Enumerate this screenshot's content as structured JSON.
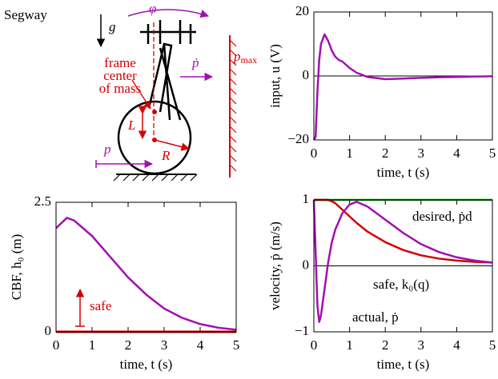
{
  "diagram": {
    "title": "Segway",
    "g": "g",
    "phi": "φ",
    "p_max": {
      "base": "p",
      "sub": "max"
    },
    "p_dot": "ṗ",
    "com_label": [
      "frame",
      "center",
      "of mass"
    ],
    "L": "L",
    "R": "R",
    "p": "p"
  },
  "chart_data": [
    {
      "type": "line",
      "xlabel": "time, t (s)",
      "ylabel": "input, u (V)",
      "x": [
        0,
        0.05,
        0.1,
        0.15,
        0.2,
        0.3,
        0.4,
        0.5,
        0.6,
        0.7,
        0.8,
        1.0,
        1.2,
        1.5,
        2.0,
        2.5,
        3,
        3.5,
        4,
        4.5,
        5
      ],
      "series": [
        {
          "color": "#a010b0",
          "values": [
            -20,
            -19,
            -5,
            5,
            10,
            13,
            11,
            8,
            6,
            5,
            4.5,
            2.5,
            1,
            -0.3,
            -1,
            -0.8,
            -0.6,
            -0.4,
            -0.3,
            -0.2,
            -0.1
          ]
        }
      ],
      "xlim": [
        0,
        5
      ],
      "ylim": [
        -20,
        20
      ],
      "xticks": [
        0,
        1,
        2,
        3,
        4,
        5
      ],
      "yticks": [
        {
          "value": -20,
          "label": "−20"
        },
        0,
        20
      ],
      "zero_line_color": "#000000"
    },
    {
      "type": "line",
      "xlabel": "time, t (s)",
      "ylabel": "CBF, h₀ (m)",
      "x": [
        0,
        0.3,
        0.5,
        1,
        1.5,
        2,
        2.5,
        3,
        3.5,
        4,
        4.5,
        5
      ],
      "series": [
        {
          "color": "#a010b0",
          "values": [
            2.0,
            2.2,
            2.15,
            1.85,
            1.45,
            1.05,
            0.72,
            0.45,
            0.27,
            0.15,
            0.08,
            0.04
          ]
        }
      ],
      "xlim": [
        0,
        5
      ],
      "ylim": [
        0,
        2.5
      ],
      "xticks": [
        0,
        1,
        2,
        3,
        4,
        5
      ],
      "yticks": [
        0,
        2.5
      ],
      "zero_line_color": "#d40000",
      "annotations": [
        {
          "text": "safe"
        }
      ]
    },
    {
      "type": "line",
      "xlabel": "time, t (s)",
      "ylabel": "velocity, ṗ (m/s)",
      "x": [
        0,
        0.05,
        0.1,
        0.15,
        0.2,
        0.3,
        0.4,
        0.5,
        0.6,
        0.8,
        1,
        1.2,
        1.5,
        2,
        2.5,
        3,
        3.5,
        4,
        4.5,
        5
      ],
      "series": [
        {
          "name": "desired, ṗd",
          "color": "#00a000",
          "values": [
            1,
            1,
            1,
            1,
            1,
            1,
            1,
            1,
            1,
            1,
            1,
            1,
            1,
            1,
            1,
            1,
            1,
            1,
            1,
            1
          ]
        },
        {
          "name": "safe, k₀(q)",
          "color": "#d40000",
          "values": [
            1,
            1,
            1,
            1,
            1,
            1,
            1,
            0.98,
            0.95,
            0.85,
            0.75,
            0.65,
            0.52,
            0.36,
            0.24,
            0.16,
            0.11,
            0.08,
            0.06,
            0.05
          ]
        },
        {
          "name": "actual, ṗ",
          "color": "#a010b0",
          "values": [
            1,
            0.2,
            -0.6,
            -0.85,
            -0.75,
            -0.35,
            0.05,
            0.35,
            0.55,
            0.8,
            0.93,
            0.97,
            0.9,
            0.7,
            0.5,
            0.33,
            0.21,
            0.13,
            0.08,
            0.05
          ]
        }
      ],
      "xlim": [
        0,
        5
      ],
      "ylim": [
        -1,
        1
      ],
      "xticks": [
        0,
        1,
        2,
        3,
        4,
        5
      ],
      "yticks": [
        {
          "value": -1,
          "label": "−1"
        },
        0,
        1
      ],
      "zero_line_color": "#000000"
    }
  ]
}
